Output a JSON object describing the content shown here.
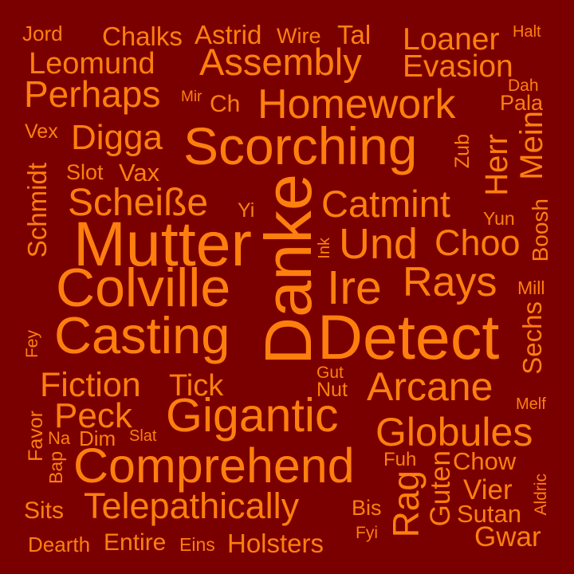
{
  "colors": {
    "background": "#7a0000",
    "word": "#ff7f0e"
  },
  "words": {
    "jord": "Jord",
    "chalks": "Chalks",
    "astrid": "Astrid",
    "wire": "Wire",
    "tal": "Tal",
    "loaner": "Loaner",
    "halt": "Halt",
    "leomund": "Leomund",
    "assembly": "Assembly",
    "evasion": "Evasion",
    "perhaps": "Perhaps",
    "mir": "Mir",
    "ch": "Ch",
    "homework": "Homework",
    "dah": "Dah",
    "pala": "Pala",
    "vex": "Vex",
    "digga": "Digga",
    "scorching": "Scorching",
    "zub": "Zub",
    "herr": "Herr",
    "mein": "Mein",
    "schmidt": "Schmidt",
    "slot": "Slot",
    "vax": "Vax",
    "scheisse": "Scheiße",
    "yi": "Yi",
    "danke": "Danke",
    "catmint": "Catmint",
    "yun": "Yun",
    "boosh": "Boosh",
    "mutter": "Mutter",
    "ink": "Ink",
    "und": "Und",
    "choo": "Choo",
    "colville": "Colville",
    "ire": "Ire",
    "rays": "Rays",
    "mill": "Mill",
    "fey": "Fey",
    "casting": "Casting",
    "detect": "Detect",
    "sechs": "Sechs",
    "gut": "Gut",
    "fiction": "Fiction",
    "tick": "Tick",
    "nut": "Nut",
    "arcane": "Arcane",
    "melf": "Melf",
    "peck": "Peck",
    "gigantic": "Gigantic",
    "favor": "Favor",
    "na": "Na",
    "dim": "Dim",
    "slat": "Slat",
    "globules": "Globules",
    "bap": "Bap",
    "comprehend": "Comprehend",
    "fuh": "Fuh",
    "chow": "Chow",
    "guten": "Guten",
    "rag": "Rag",
    "aldric": "Aldric",
    "vier": "Vier",
    "sits": "Sits",
    "telepathically": "Telepathically",
    "bis": "Bis",
    "sutan": "Sutan",
    "fyi": "Fyi",
    "gwar": "Gwar",
    "dearth": "Dearth",
    "entire": "Entire",
    "eins": "Eins",
    "holsters": "Holsters"
  }
}
